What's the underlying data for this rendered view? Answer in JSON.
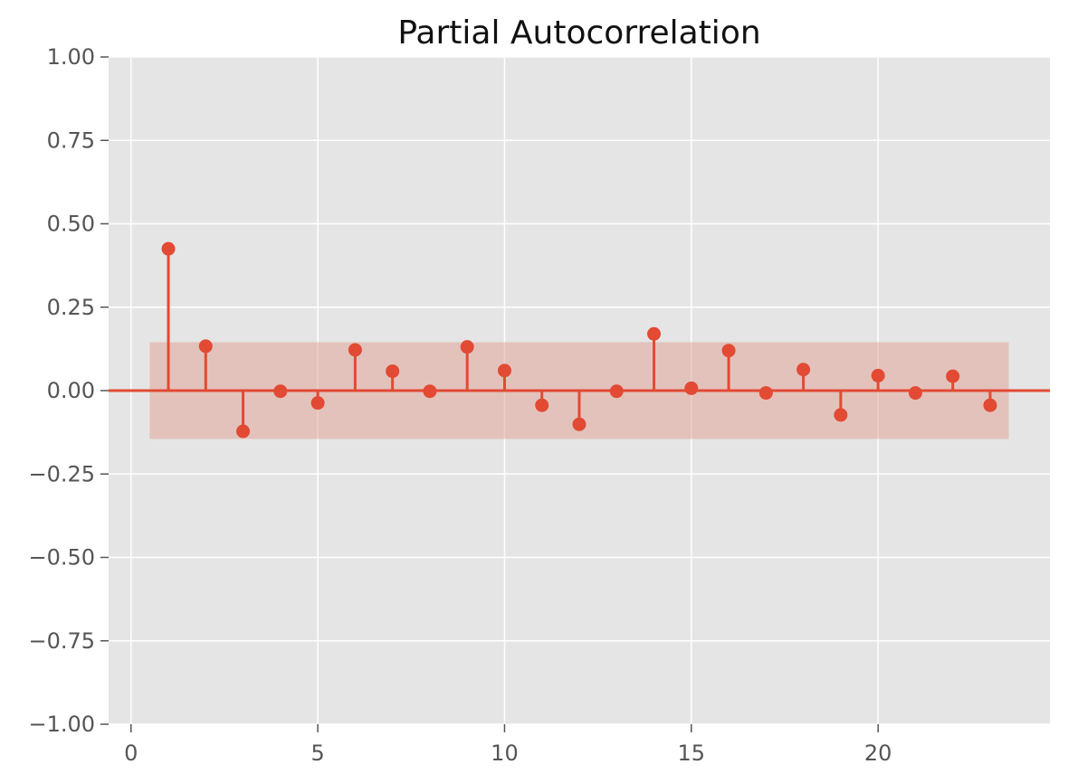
{
  "chart_data": {
    "type": "stem",
    "title": "Partial Autocorrelation",
    "xlabel": "",
    "ylabel": "",
    "x_ticks": [
      0,
      5,
      10,
      15,
      20
    ],
    "y_ticks": [
      "1.00",
      "0.75",
      "0.50",
      "0.25",
      "0.00",
      "−0.25",
      "−0.50",
      "−0.75",
      "−1.00"
    ],
    "y_tick_values": [
      1.0,
      0.75,
      0.5,
      0.25,
      0.0,
      -0.25,
      -0.5,
      -0.75,
      -1.0
    ],
    "xlim": [
      -0.6,
      24.6
    ],
    "ylim": [
      -1.0,
      1.0
    ],
    "grid": true,
    "confidence_band": {
      "x_range": [
        0.5,
        23.5
      ],
      "upper": 0.145,
      "lower": -0.145
    },
    "series": [
      {
        "lags": [
          1,
          2,
          3,
          4,
          5,
          6,
          7,
          8,
          9,
          10,
          11,
          12,
          13,
          14,
          15,
          16,
          17,
          18,
          19,
          20,
          21,
          22,
          23
        ],
        "values": [
          0.425,
          0.133,
          -0.122,
          -0.002,
          -0.037,
          0.122,
          0.058,
          -0.002,
          0.131,
          0.06,
          -0.044,
          -0.101,
          -0.002,
          0.17,
          0.007,
          0.12,
          -0.007,
          0.063,
          -0.073,
          0.045,
          -0.007,
          0.043,
          -0.044
        ]
      }
    ],
    "colors": {
      "plot_bg": "#e5e5e5",
      "grid": "#ffffff",
      "series": "#e24a33",
      "band": "#e2a59a",
      "tick_text": "#555555",
      "title_text": "#111111"
    }
  }
}
